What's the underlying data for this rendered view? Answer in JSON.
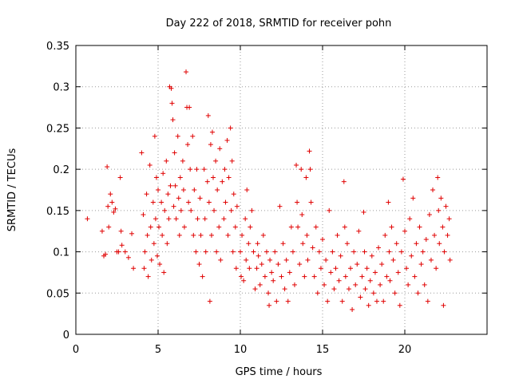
{
  "chart_data": {
    "type": "scatter",
    "title": "Day 222 of 2018, SRMTID for receiver pohn",
    "xlabel": "GPS time / hours",
    "ylabel": "SRMTID / TECUs",
    "xlim": [
      0,
      25
    ],
    "ylim": [
      0,
      0.35
    ],
    "xticks": [
      0,
      5,
      10,
      15,
      20
    ],
    "yticks": [
      0,
      0.05,
      0.1,
      0.15,
      0.2,
      0.25,
      0.3,
      0.35
    ],
    "xtick_labels": [
      "0",
      "5",
      "10",
      "15",
      "20"
    ],
    "ytick_labels": [
      "0",
      "0.05",
      "0.1",
      "0.15",
      "0.2",
      "0.25",
      "0.3",
      "0.35"
    ],
    "grid": true,
    "marker": "+",
    "color": "#e00000",
    "series": [
      {
        "name": "SRMTID",
        "points": [
          [
            0.7,
            0.14
          ],
          [
            1.6,
            0.125
          ],
          [
            1.7,
            0.095
          ],
          [
            1.8,
            0.097
          ],
          [
            1.9,
            0.203
          ],
          [
            1.95,
            0.155
          ],
          [
            2.0,
            0.13
          ],
          [
            2.1,
            0.17
          ],
          [
            2.2,
            0.16
          ],
          [
            2.3,
            0.148
          ],
          [
            2.4,
            0.152
          ],
          [
            2.5,
            0.1
          ],
          [
            2.6,
            0.1
          ],
          [
            2.7,
            0.19
          ],
          [
            2.75,
            0.125
          ],
          [
            2.8,
            0.108
          ],
          [
            3.0,
            0.1
          ],
          [
            3.2,
            0.093
          ],
          [
            3.4,
            0.122
          ],
          [
            3.5,
            0.08
          ],
          [
            4.0,
            0.22
          ],
          [
            4.1,
            0.145
          ],
          [
            4.15,
            0.08
          ],
          [
            4.2,
            0.1
          ],
          [
            4.3,
            0.17
          ],
          [
            4.35,
            0.12
          ],
          [
            4.4,
            0.07
          ],
          [
            4.5,
            0.205
          ],
          [
            4.55,
            0.13
          ],
          [
            4.6,
            0.09
          ],
          [
            4.7,
            0.16
          ],
          [
            4.75,
            0.11
          ],
          [
            4.8,
            0.24
          ],
          [
            4.85,
            0.14
          ],
          [
            4.9,
            0.19
          ],
          [
            4.95,
            0.095
          ],
          [
            5.0,
            0.175
          ],
          [
            5.05,
            0.13
          ],
          [
            5.1,
            0.085
          ],
          [
            5.2,
            0.16
          ],
          [
            5.25,
            0.12
          ],
          [
            5.3,
            0.195
          ],
          [
            5.35,
            0.075
          ],
          [
            5.4,
            0.15
          ],
          [
            5.5,
            0.21
          ],
          [
            5.55,
            0.11
          ],
          [
            5.6,
            0.17
          ],
          [
            5.65,
            0.14
          ],
          [
            5.7,
            0.3
          ],
          [
            5.75,
            0.18
          ],
          [
            5.8,
            0.298
          ],
          [
            5.85,
            0.28
          ],
          [
            5.9,
            0.26
          ],
          [
            5.95,
            0.155
          ],
          [
            6.0,
            0.22
          ],
          [
            6.05,
            0.18
          ],
          [
            6.1,
            0.14
          ],
          [
            6.2,
            0.24
          ],
          [
            6.25,
            0.165
          ],
          [
            6.3,
            0.12
          ],
          [
            6.35,
            0.19
          ],
          [
            6.4,
            0.15
          ],
          [
            6.5,
            0.21
          ],
          [
            6.55,
            0.175
          ],
          [
            6.6,
            0.13
          ],
          [
            6.7,
            0.318
          ],
          [
            6.75,
            0.275
          ],
          [
            6.8,
            0.23
          ],
          [
            6.85,
            0.16
          ],
          [
            6.9,
            0.275
          ],
          [
            6.95,
            0.2
          ],
          [
            7.0,
            0.15
          ],
          [
            7.1,
            0.24
          ],
          [
            7.15,
            0.12
          ],
          [
            7.2,
            0.175
          ],
          [
            7.3,
            0.1
          ],
          [
            7.35,
            0.2
          ],
          [
            7.4,
            0.14
          ],
          [
            7.5,
            0.085
          ],
          [
            7.55,
            0.165
          ],
          [
            7.6,
            0.12
          ],
          [
            7.7,
            0.07
          ],
          [
            7.8,
            0.2
          ],
          [
            7.85,
            0.14
          ],
          [
            7.9,
            0.1
          ],
          [
            8.0,
            0.185
          ],
          [
            8.05,
            0.265
          ],
          [
            8.1,
            0.16
          ],
          [
            8.15,
            0.04
          ],
          [
            8.2,
            0.23
          ],
          [
            8.25,
            0.12
          ],
          [
            8.3,
            0.245
          ],
          [
            8.35,
            0.19
          ],
          [
            8.4,
            0.15
          ],
          [
            8.5,
            0.21
          ],
          [
            8.55,
            0.1
          ],
          [
            8.6,
            0.175
          ],
          [
            8.7,
            0.13
          ],
          [
            8.75,
            0.225
          ],
          [
            8.8,
            0.09
          ],
          [
            8.9,
            0.185
          ],
          [
            9.0,
            0.14
          ],
          [
            9.05,
            0.2
          ],
          [
            9.1,
            0.16
          ],
          [
            9.2,
            0.235
          ],
          [
            9.25,
            0.12
          ],
          [
            9.3,
            0.19
          ],
          [
            9.4,
            0.25
          ],
          [
            9.45,
            0.15
          ],
          [
            9.5,
            0.21
          ],
          [
            9.55,
            0.1
          ],
          [
            9.6,
            0.17
          ],
          [
            9.7,
            0.13
          ],
          [
            9.75,
            0.08
          ],
          [
            9.8,
            0.155
          ],
          [
            10.0,
            0.1
          ],
          [
            10.05,
            0.07
          ],
          [
            10.1,
            0.12
          ],
          [
            10.2,
            0.065
          ],
          [
            10.3,
            0.14
          ],
          [
            10.35,
            0.09
          ],
          [
            10.4,
            0.175
          ],
          [
            10.5,
            0.11
          ],
          [
            10.55,
            0.08
          ],
          [
            10.6,
            0.13
          ],
          [
            10.7,
            0.15
          ],
          [
            10.8,
            0.1
          ],
          [
            10.9,
            0.055
          ],
          [
            11.0,
            0.08
          ],
          [
            11.05,
            0.11
          ],
          [
            11.1,
            0.095
          ],
          [
            11.2,
            0.06
          ],
          [
            11.3,
            0.085
          ],
          [
            11.4,
            0.12
          ],
          [
            11.5,
            0.07
          ],
          [
            11.6,
            0.1
          ],
          [
            11.7,
            0.05
          ],
          [
            11.75,
            0.035
          ],
          [
            11.8,
            0.09
          ],
          [
            11.9,
            0.075
          ],
          [
            12.0,
            0.065
          ],
          [
            12.1,
            0.1
          ],
          [
            12.2,
            0.04
          ],
          [
            12.3,
            0.085
          ],
          [
            12.4,
            0.155
          ],
          [
            12.5,
            0.07
          ],
          [
            12.6,
            0.11
          ],
          [
            12.7,
            0.055
          ],
          [
            12.8,
            0.09
          ],
          [
            12.9,
            0.04
          ],
          [
            13.0,
            0.075
          ],
          [
            13.1,
            0.13
          ],
          [
            13.2,
            0.1
          ],
          [
            13.3,
            0.06
          ],
          [
            13.4,
            0.205
          ],
          [
            13.45,
            0.16
          ],
          [
            13.5,
            0.13
          ],
          [
            13.6,
            0.085
          ],
          [
            13.7,
            0.2
          ],
          [
            13.75,
            0.145
          ],
          [
            13.8,
            0.11
          ],
          [
            13.9,
            0.07
          ],
          [
            14.0,
            0.19
          ],
          [
            14.05,
            0.12
          ],
          [
            14.1,
            0.09
          ],
          [
            14.2,
            0.222
          ],
          [
            14.25,
            0.2
          ],
          [
            14.3,
            0.16
          ],
          [
            14.4,
            0.105
          ],
          [
            14.5,
            0.07
          ],
          [
            14.6,
            0.13
          ],
          [
            14.7,
            0.05
          ],
          [
            14.8,
            0.1
          ],
          [
            14.9,
            0.08
          ],
          [
            15.0,
            0.115
          ],
          [
            15.1,
            0.06
          ],
          [
            15.2,
            0.09
          ],
          [
            15.3,
            0.04
          ],
          [
            15.4,
            0.15
          ],
          [
            15.5,
            0.075
          ],
          [
            15.6,
            0.1
          ],
          [
            15.7,
            0.055
          ],
          [
            15.8,
            0.08
          ],
          [
            15.9,
            0.12
          ],
          [
            16.0,
            0.065
          ],
          [
            16.1,
            0.095
          ],
          [
            16.2,
            0.04
          ],
          [
            16.3,
            0.185
          ],
          [
            16.35,
            0.13
          ],
          [
            16.4,
            0.07
          ],
          [
            16.5,
            0.11
          ],
          [
            16.6,
            0.055
          ],
          [
            16.7,
            0.08
          ],
          [
            16.8,
            0.03
          ],
          [
            16.9,
            0.1
          ],
          [
            17.0,
            0.06
          ],
          [
            17.1,
            0.085
          ],
          [
            17.2,
            0.125
          ],
          [
            17.3,
            0.045
          ],
          [
            17.4,
            0.07
          ],
          [
            17.5,
            0.148
          ],
          [
            17.55,
            0.1
          ],
          [
            17.6,
            0.055
          ],
          [
            17.7,
            0.08
          ],
          [
            17.8,
            0.035
          ],
          [
            17.9,
            0.065
          ],
          [
            18.0,
            0.095
          ],
          [
            18.1,
            0.05
          ],
          [
            18.2,
            0.075
          ],
          [
            18.3,
            0.04
          ],
          [
            18.4,
            0.105
          ],
          [
            18.5,
            0.06
          ],
          [
            18.6,
            0.085
          ],
          [
            18.7,
            0.04
          ],
          [
            18.8,
            0.12
          ],
          [
            18.9,
            0.07
          ],
          [
            19.0,
            0.16
          ],
          [
            19.05,
            0.1
          ],
          [
            19.1,
            0.065
          ],
          [
            19.2,
            0.13
          ],
          [
            19.3,
            0.09
          ],
          [
            19.4,
            0.05
          ],
          [
            19.5,
            0.11
          ],
          [
            19.6,
            0.075
          ],
          [
            19.7,
            0.035
          ],
          [
            19.8,
            0.1
          ],
          [
            19.9,
            0.188
          ],
          [
            20.0,
            0.125
          ],
          [
            20.1,
            0.08
          ],
          [
            20.2,
            0.06
          ],
          [
            20.3,
            0.14
          ],
          [
            20.4,
            0.095
          ],
          [
            20.5,
            0.165
          ],
          [
            20.6,
            0.07
          ],
          [
            20.7,
            0.11
          ],
          [
            20.8,
            0.05
          ],
          [
            20.9,
            0.13
          ],
          [
            21.0,
            0.085
          ],
          [
            21.1,
            0.1
          ],
          [
            21.2,
            0.06
          ],
          [
            21.3,
            0.115
          ],
          [
            21.4,
            0.04
          ],
          [
            21.5,
            0.145
          ],
          [
            21.6,
            0.09
          ],
          [
            21.7,
            0.175
          ],
          [
            21.8,
            0.12
          ],
          [
            21.9,
            0.08
          ],
          [
            22.0,
            0.19
          ],
          [
            22.05,
            0.15
          ],
          [
            22.1,
            0.11
          ],
          [
            22.2,
            0.165
          ],
          [
            22.3,
            0.13
          ],
          [
            22.35,
            0.035
          ],
          [
            22.4,
            0.1
          ],
          [
            22.5,
            0.155
          ],
          [
            22.6,
            0.12
          ],
          [
            22.7,
            0.14
          ],
          [
            22.75,
            0.09
          ]
        ]
      }
    ]
  }
}
